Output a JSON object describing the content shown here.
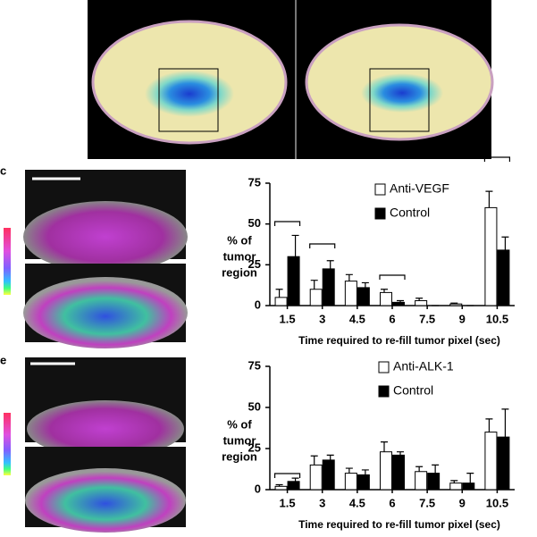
{
  "panel_labels": [
    "c",
    "e"
  ],
  "chart_data": [
    {
      "type": "bar",
      "categories": [
        "1.5",
        "3",
        "4.5",
        "6",
        "7.5",
        "9",
        "10.5"
      ],
      "series": [
        {
          "name": "Anti-VEGF",
          "color": "#ffffff",
          "values": [
            5,
            10,
            15,
            8,
            3,
            1,
            60
          ],
          "errors": [
            5,
            5.5,
            4,
            2,
            1.5,
            0.5,
            10
          ]
        },
        {
          "name": "Control",
          "color": "#000000",
          "values": [
            30,
            22.5,
            11,
            2,
            0,
            0,
            34
          ],
          "errors": [
            13,
            5,
            3,
            1,
            0,
            0,
            8
          ]
        }
      ],
      "y_label_lines": [
        "% of",
        "tumor",
        "region"
      ],
      "x_label": "Time required to re-fill tumor pixel (sec)",
      "ylim": [
        0,
        75
      ],
      "yticks": [
        0,
        25,
        50,
        75
      ]
    },
    {
      "type": "bar",
      "categories": [
        "1.5",
        "3",
        "4.5",
        "6",
        "7.5",
        "9",
        "10.5"
      ],
      "series": [
        {
          "name": "Anti-ALK-1",
          "color": "#ffffff",
          "values": [
            2,
            15,
            10,
            23,
            11,
            4,
            35
          ],
          "errors": [
            1,
            5.5,
            3,
            6,
            3,
            1.5,
            8
          ]
        },
        {
          "name": "Control",
          "color": "#000000",
          "values": [
            5,
            18,
            9,
            21,
            10,
            4,
            32
          ],
          "errors": [
            2,
            3,
            3,
            2,
            5,
            6,
            17
          ]
        }
      ],
      "y_label_lines": [
        "% of",
        "tumor",
        "region"
      ],
      "x_label": "Time required to re-fill tumor pixel (sec)",
      "ylim": [
        0,
        75
      ],
      "yticks": [
        0,
        25,
        50,
        75
      ]
    }
  ]
}
